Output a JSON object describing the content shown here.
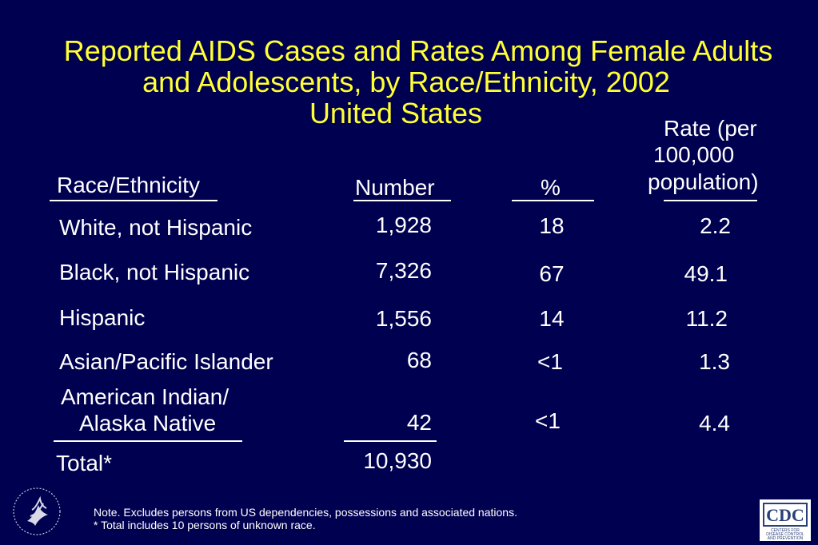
{
  "title": {
    "line1": "Reported AIDS Cases and Rates Among Female Adults",
    "line2": "and Adolescents, by Race/Ethnicity, 2002",
    "line3": "United States"
  },
  "headers": {
    "race": "Race/Ethnicity",
    "number": "Number",
    "percent": "%",
    "rate_line1": "Rate (per",
    "rate_line2": "100,000",
    "rate_line3": "population)"
  },
  "rows": [
    {
      "race": "White, not Hispanic",
      "number": "1,928",
      "percent": "18",
      "rate": "2.2"
    },
    {
      "race": "Black, not Hispanic",
      "number": "7,326",
      "percent": "67",
      "rate": "49.1"
    },
    {
      "race": "Hispanic",
      "number": "1,556",
      "percent": "14",
      "rate": "11.2"
    },
    {
      "race": "Asian/Pacific Islander",
      "number": "68",
      "percent": "<1",
      "rate": "1.3"
    },
    {
      "race_line1": "American Indian/",
      "race_line2": "Alaska Native",
      "number": "42",
      "percent": "<1",
      "rate": "4.4"
    }
  ],
  "total": {
    "label": "Total*",
    "number": "10,930"
  },
  "notes": {
    "line1": "Note. Excludes persons from US dependencies, possessions and associated nations.",
    "line2": "* Total includes 10 persons of unknown race."
  },
  "logos": {
    "left_icon": "hhs-eagle-seal-icon",
    "right_icon": "cdc-logo-icon",
    "cdc_text": "CDC",
    "cdc_subtext": "CENTERS FOR DISEASE CONTROL AND PREVENTION"
  },
  "colors": {
    "background": "#000050",
    "title": "#ffff33",
    "text": "#ffffff"
  }
}
